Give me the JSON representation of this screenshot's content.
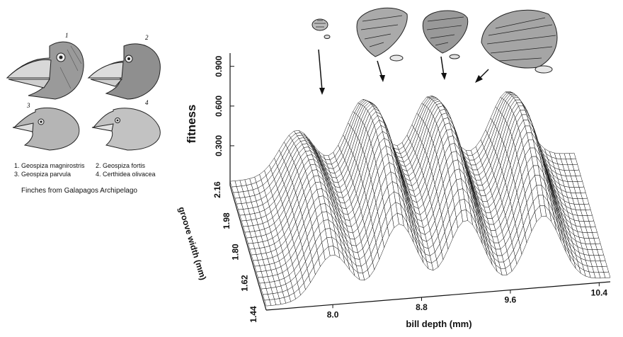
{
  "finches": {
    "numbers": [
      "1",
      "2",
      "3",
      "4"
    ],
    "legend": [
      [
        "1. Geospiza magnirostris",
        "2. Geospiza fortis"
      ],
      [
        "3. Geospiza parvula",
        "4. Certhidea olivacea"
      ]
    ],
    "caption": "Finches from Galapagos Archipelago"
  },
  "chart_data": {
    "type": "surface",
    "title": "",
    "xlabel": "bill depth (mm)",
    "ylabel": "groove width (mm)",
    "zlabel": "fitness",
    "x_ticks": [
      "8.0",
      "8.8",
      "9.6",
      "10.4"
    ],
    "y_ticks": [
      "2.16",
      "1.98",
      "1.80",
      "1.62",
      "1.44"
    ],
    "z_ticks": [
      "0.300",
      "0.600",
      "0.900"
    ],
    "xlim": [
      7.4,
      10.5
    ],
    "ylim": [
      1.44,
      2.16
    ],
    "zlim": [
      0,
      0.9
    ],
    "peaks": [
      {
        "bill_depth": 8.0,
        "fitness": 0.5
      },
      {
        "bill_depth": 8.6,
        "fitness": 0.78
      },
      {
        "bill_depth": 9.2,
        "fitness": 0.76
      },
      {
        "bill_depth": 9.9,
        "fitness": 0.74
      }
    ],
    "colors": {
      "mesh": "#111111",
      "background": "#ffffff"
    }
  }
}
